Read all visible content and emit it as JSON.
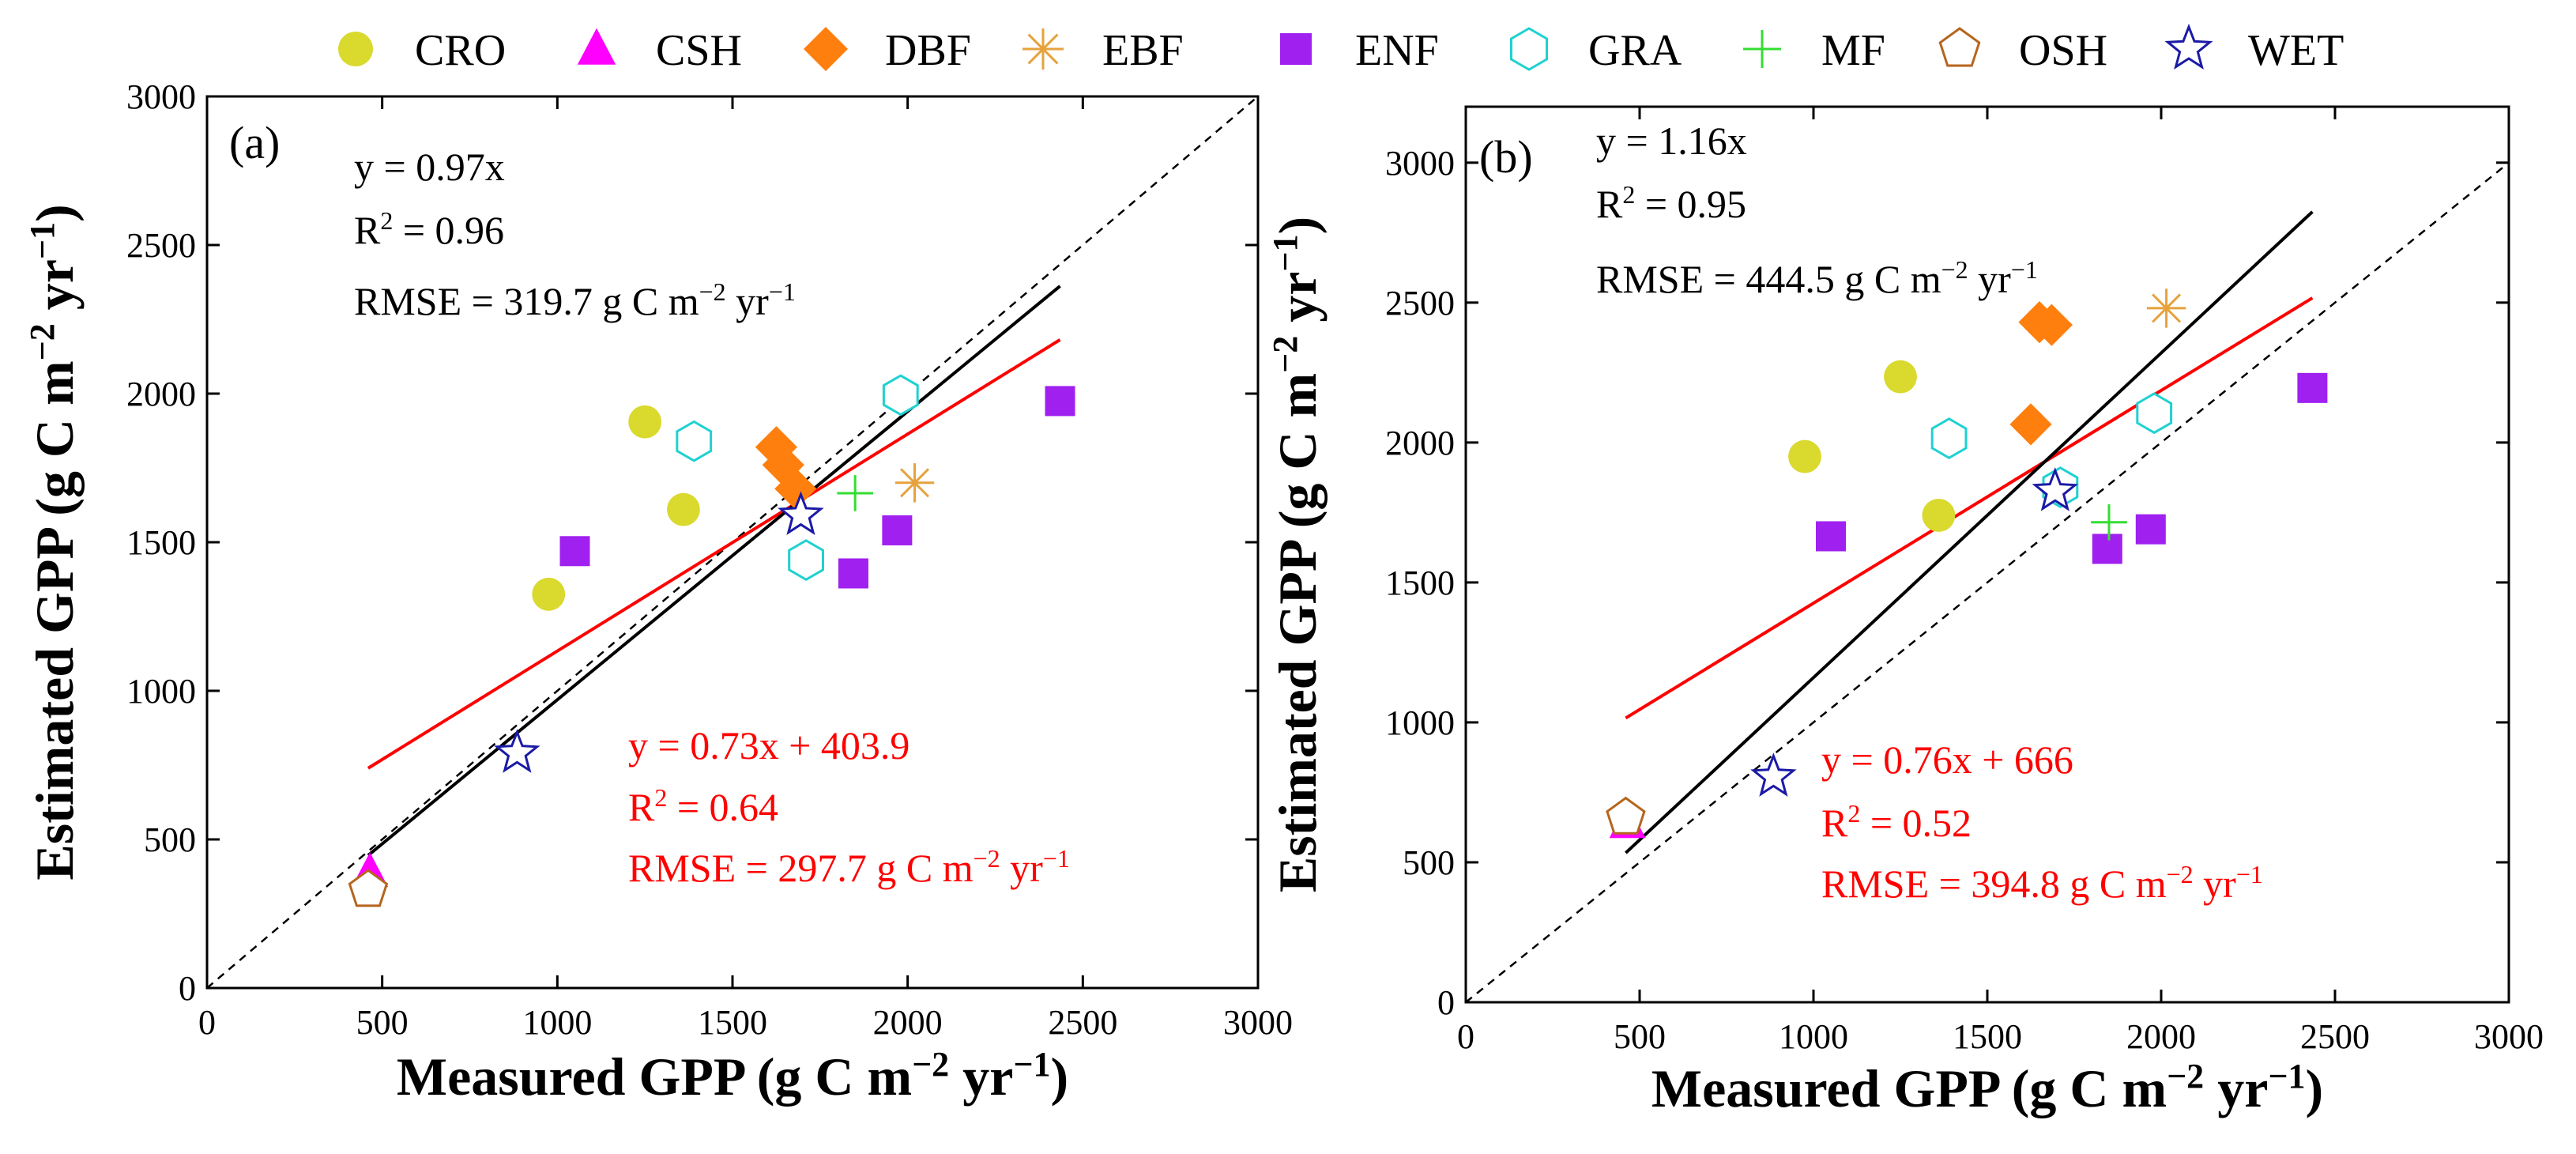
{
  "legend": [
    {
      "label": "CRO",
      "marker": "circle",
      "color": "#d9d92e"
    },
    {
      "label": "CSH",
      "marker": "triangle",
      "color": "#ff00ff"
    },
    {
      "label": "DBF",
      "marker": "diamond",
      "color": "#ff7f0e"
    },
    {
      "label": "EBF",
      "marker": "asterisk",
      "color": "#e6a23c"
    },
    {
      "label": "ENF",
      "marker": "square",
      "color": "#a020f0"
    },
    {
      "label": "GRA",
      "marker": "hexagon",
      "color": "#1fd1d1"
    },
    {
      "label": "MF",
      "marker": "plus",
      "color": "#33dd33"
    },
    {
      "label": "OSH",
      "marker": "pentagon",
      "color": "#b5651d"
    },
    {
      "label": "WET",
      "marker": "star",
      "color": "#1a1aa6"
    }
  ],
  "chart_data": [
    {
      "type": "scatter",
      "panel_label": "(a)",
      "xlabel": "Measured GPP  (g C m⁻² yr⁻¹)",
      "ylabel": "Estimated GPP  (g C m⁻² yr⁻¹)",
      "xlim": [
        0,
        3000
      ],
      "ylim": [
        0,
        3000
      ],
      "x_ticks": [
        "0",
        "500",
        "1000",
        "1500",
        "2000",
        "2500",
        "3000"
      ],
      "y_ticks": [
        "0",
        "500",
        "1000",
        "1500",
        "2000",
        "2500",
        "3000"
      ],
      "x_tick_values": [
        0,
        500,
        1000,
        1500,
        2000,
        2500,
        3000
      ],
      "y_tick_values": [
        0,
        500,
        1000,
        1500,
        2000,
        2500,
        3000
      ],
      "points": [
        {
          "group": "CRO",
          "x": 975,
          "y": 1325
        },
        {
          "group": "CRO",
          "x": 1250,
          "y": 1905
        },
        {
          "group": "CRO",
          "x": 1360,
          "y": 1610
        },
        {
          "group": "CSH",
          "x": 465,
          "y": 390
        },
        {
          "group": "DBF",
          "x": 1625,
          "y": 1820
        },
        {
          "group": "DBF",
          "x": 1645,
          "y": 1760
        },
        {
          "group": "DBF",
          "x": 1680,
          "y": 1680
        },
        {
          "group": "EBF",
          "x": 2020,
          "y": 1700
        },
        {
          "group": "ENF",
          "x": 1050,
          "y": 1470
        },
        {
          "group": "ENF",
          "x": 1845,
          "y": 1395
        },
        {
          "group": "ENF",
          "x": 1970,
          "y": 1540
        },
        {
          "group": "ENF",
          "x": 2435,
          "y": 1975
        },
        {
          "group": "GRA",
          "x": 1390,
          "y": 1840
        },
        {
          "group": "GRA",
          "x": 1710,
          "y": 1440
        },
        {
          "group": "GRA",
          "x": 1980,
          "y": 1995
        },
        {
          "group": "MF",
          "x": 1850,
          "y": 1665
        },
        {
          "group": "OSH",
          "x": 460,
          "y": 330
        },
        {
          "group": "WET",
          "x": 885,
          "y": 790
        },
        {
          "group": "WET",
          "x": 1695,
          "y": 1590
        }
      ],
      "one_to_one_line": true,
      "fit_through_origin": {
        "slope": 0.97,
        "x_range": [
          460,
          2435
        ],
        "color": "#000000"
      },
      "fit_linear": {
        "slope": 0.73,
        "intercept": 403.9,
        "x_range": [
          460,
          2435
        ],
        "color": "#ff0000"
      },
      "annotations_black": [
        "y = 0.97x",
        "R² = 0.96",
        "RMSE = 319.7 g C m⁻² yr⁻¹"
      ],
      "annotations_red": [
        "y = 0.73x + 403.9",
        "R² = 0.64",
        "RMSE = 297.7 g C m⁻² yr⁻¹"
      ]
    },
    {
      "type": "scatter",
      "panel_label": "(b)",
      "xlabel": "Measured GPP  (g C m⁻² yr⁻¹)",
      "ylabel": "Estimated GPP  (g C m⁻² yr⁻¹)",
      "xlim": [
        0,
        3000
      ],
      "ylim": [
        0,
        3200
      ],
      "x_ticks": [
        "0",
        "500",
        "1000",
        "1500",
        "2000",
        "2500",
        "3000"
      ],
      "y_ticks": [
        "0",
        "500",
        "1000",
        "1500",
        "2000",
        "2500",
        "3000"
      ],
      "x_tick_values": [
        0,
        500,
        1000,
        1500,
        2000,
        2500,
        3000
      ],
      "y_tick_values": [
        0,
        500,
        1000,
        1500,
        2000,
        2500,
        3000
      ],
      "points": [
        {
          "group": "CRO",
          "x": 975,
          "y": 1950
        },
        {
          "group": "CRO",
          "x": 1250,
          "y": 2235
        },
        {
          "group": "CRO",
          "x": 1360,
          "y": 1740
        },
        {
          "group": "CSH",
          "x": 465,
          "y": 640
        },
        {
          "group": "DBF",
          "x": 1625,
          "y": 2065
        },
        {
          "group": "DBF",
          "x": 1650,
          "y": 2430
        },
        {
          "group": "DBF",
          "x": 1685,
          "y": 2420
        },
        {
          "group": "EBF",
          "x": 2015,
          "y": 2480
        },
        {
          "group": "ENF",
          "x": 1050,
          "y": 1665
        },
        {
          "group": "ENF",
          "x": 1845,
          "y": 1620
        },
        {
          "group": "ENF",
          "x": 1970,
          "y": 1690
        },
        {
          "group": "ENF",
          "x": 2435,
          "y": 2195
        },
        {
          "group": "GRA",
          "x": 1390,
          "y": 2015
        },
        {
          "group": "GRA",
          "x": 1710,
          "y": 1840
        },
        {
          "group": "GRA",
          "x": 1980,
          "y": 2105
        },
        {
          "group": "MF",
          "x": 1850,
          "y": 1715
        },
        {
          "group": "OSH",
          "x": 460,
          "y": 660
        },
        {
          "group": "WET",
          "x": 885,
          "y": 805
        },
        {
          "group": "WET",
          "x": 1695,
          "y": 1825
        }
      ],
      "one_to_one_line": true,
      "fit_through_origin": {
        "slope": 1.16,
        "x_range": [
          460,
          2435
        ],
        "color": "#000000"
      },
      "fit_linear": {
        "slope": 0.76,
        "intercept": 666,
        "x_range": [
          460,
          2435
        ],
        "color": "#ff0000"
      },
      "annotations_black": [
        "y = 1.16x",
        "R² = 0.95",
        "RMSE = 444.5 g C m⁻² yr⁻¹"
      ],
      "annotations_red": [
        "y = 0.76x + 666",
        "R² = 0.52",
        "RMSE = 394.8 g C m⁻² yr⁻¹"
      ]
    }
  ]
}
